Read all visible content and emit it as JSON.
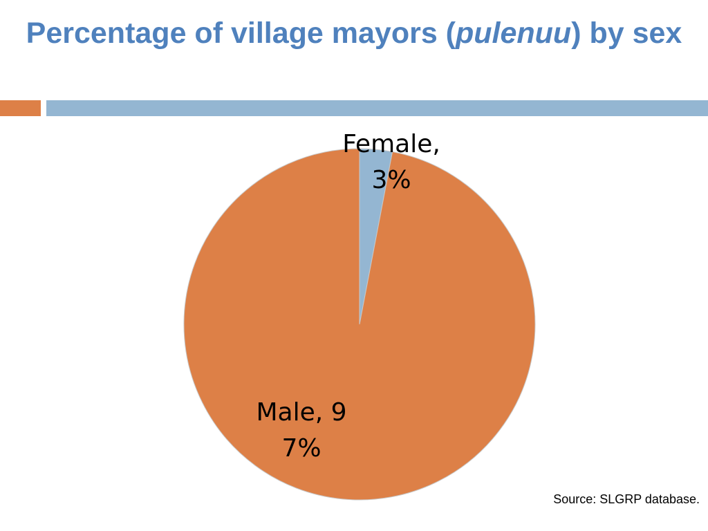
{
  "title": {
    "before": "Percentage of village mayors (",
    "italic": "pulenuu",
    "after": ") by sex"
  },
  "colors": {
    "title": "#4f81bd",
    "accent_orange": "#dd8047",
    "accent_blue": "#94b6d2",
    "female_slice": "#94b6d2",
    "male_slice": "#dd8047"
  },
  "chart_data": {
    "type": "pie",
    "title": "",
    "slices": [
      {
        "name": "Female",
        "value": 3,
        "label_lines": [
          "Female,",
          "3%"
        ],
        "color": "#94b6d2"
      },
      {
        "name": "Male",
        "value": 97,
        "label_lines": [
          "Male, 9",
          "7%"
        ],
        "color": "#dd8047"
      }
    ],
    "unit": "%",
    "legend": "none"
  },
  "source": "Source: SLGRP database."
}
